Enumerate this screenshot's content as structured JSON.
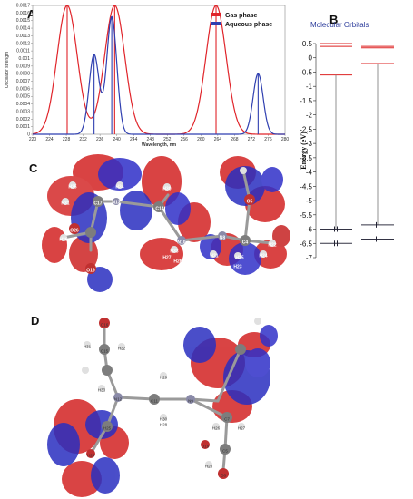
{
  "figure": {
    "panel_a": "A",
    "panel_b": "B",
    "panel_c": "C",
    "panel_d": "D"
  },
  "chart_data": [
    {
      "type": "line",
      "panel": "A",
      "xlabel": "Wavelength, nm",
      "ylabel": "Oscillator strength",
      "xlim": [
        220,
        280
      ],
      "ylim": [
        0,
        0.0017
      ],
      "x_ticks": [
        "220",
        "224",
        "228",
        "232",
        "236",
        "240",
        "244",
        "248",
        "252",
        "256",
        "260",
        "264",
        "268",
        "272",
        "276",
        "280"
      ],
      "y_ticks": [
        "0",
        "0.0001",
        "0.0002",
        "0.0003",
        "0.0004",
        "0.0005",
        "0.0006",
        "0.0007",
        "0.0008",
        "0.0009",
        "0.001",
        "0.0011",
        "0.0012",
        "0.0013",
        "0.0014",
        "0.0015",
        "0.0016",
        "0.0017"
      ],
      "legend": [
        {
          "name": "Gas phase",
          "color": "#e0242a"
        },
        {
          "name": "Aqueous phase",
          "color": "#2f3fb0"
        }
      ],
      "series": [
        {
          "name": "Gas phase",
          "color": "#e0242a",
          "peaks": [
            {
              "x": 228.2,
              "y": 0.0017
            },
            {
              "x": 239.5,
              "y": 0.0017
            },
            {
              "x": 263.6,
              "y": 0.0017
            }
          ],
          "width": 2.4
        },
        {
          "name": "Aqueous phase",
          "color": "#2f3fb0",
          "peaks": [
            {
              "x": 234.6,
              "y": 0.00105
            },
            {
              "x": 238.8,
              "y": 0.00155
            },
            {
              "x": 273.6,
              "y": 0.0008
            }
          ],
          "width": 1.2
        }
      ]
    },
    {
      "type": "line",
      "panel": "B",
      "title": "Molecular Orbitals",
      "ylabel": "Energy (eV)",
      "ylim": [
        -7,
        0.5
      ],
      "y_ticks": [
        "0.5",
        "0",
        "-0.5",
        "-1",
        "-1.5",
        "-2",
        "-2.5",
        "-3",
        "-3.5",
        "-4",
        "-4.5",
        "-5",
        "-5.5",
        "-6",
        "-6.5",
        "-7"
      ],
      "columns": [
        {
          "unoccupied": [
            0.5,
            0.4,
            -0.6
          ],
          "occupied": [
            -6.0,
            -6.5
          ]
        },
        {
          "unoccupied": [
            0.4,
            0.35,
            -0.2
          ],
          "occupied": [
            -5.85,
            -6.35
          ]
        }
      ]
    }
  ],
  "panel_c_atoms": [
    "H35",
    "H34",
    "H31",
    "C17",
    "H30",
    "C14",
    "O26",
    "H36",
    "O19",
    "N13",
    "H33",
    "C4",
    "O5",
    "H22",
    "N10",
    "H27",
    "H28",
    "N8",
    "H25",
    "H23",
    "H24",
    "H21"
  ],
  "panel_d_atoms": [
    "O16",
    "H32",
    "C15",
    "H31",
    "H33",
    "H29",
    "N12",
    "H30",
    "C11",
    "H28",
    "N9",
    "H26",
    "H27",
    "C7",
    "H25",
    "H24",
    "H23",
    "O19",
    "C5",
    "O6"
  ]
}
